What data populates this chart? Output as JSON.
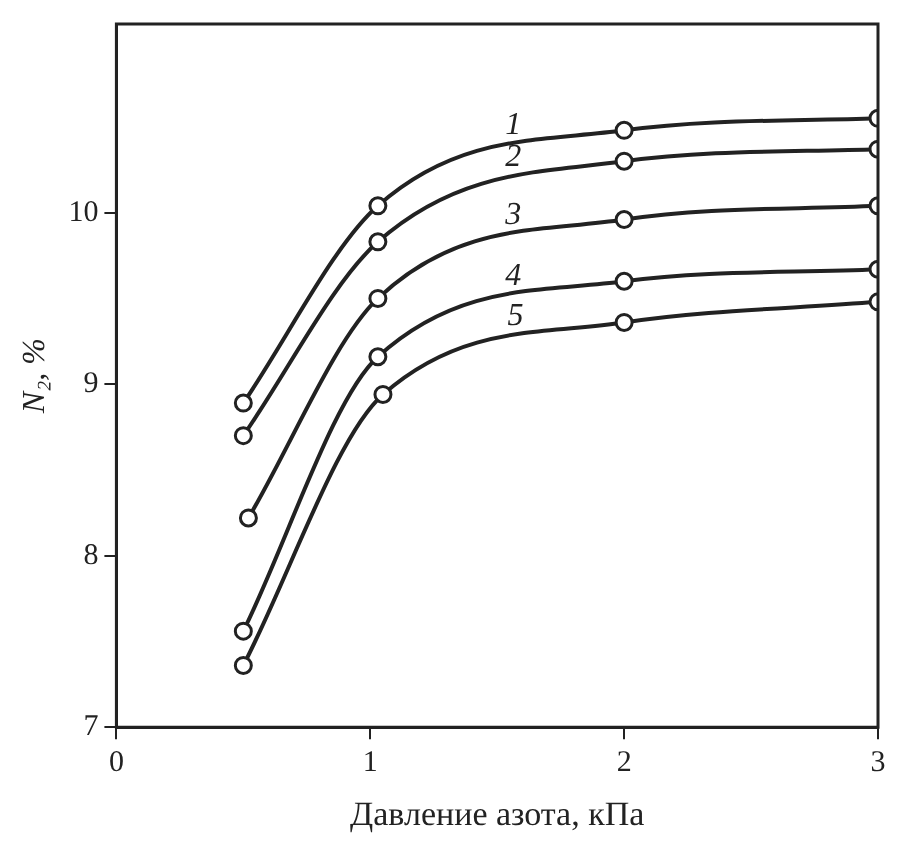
{
  "chart_data": {
    "type": "line",
    "xlabel": "Давление азота, кПа",
    "ylabel": "N₂, %",
    "xlim": [
      0,
      3
    ],
    "xticks": [
      0,
      1,
      2,
      3
    ],
    "ylim": [
      7,
      11.1
    ],
    "yticks": [
      7,
      8,
      9,
      10
    ],
    "grid": false,
    "legend": false,
    "marker": "circle",
    "line_style": "solid",
    "series": [
      {
        "name": "1",
        "color": "#222222",
        "x": [
          0.5,
          1.03,
          2,
          3
        ],
        "values": [
          8.89,
          10.04,
          10.48,
          10.55
        ]
      },
      {
        "name": "2",
        "color": "#222222",
        "x": [
          0.5,
          1.03,
          2,
          3
        ],
        "values": [
          8.7,
          9.83,
          10.3,
          10.37
        ]
      },
      {
        "name": "3",
        "color": "#222222",
        "x": [
          0.52,
          1.03,
          2,
          3
        ],
        "values": [
          8.22,
          9.5,
          9.96,
          10.04
        ]
      },
      {
        "name": "4",
        "color": "#222222",
        "x": [
          0.5,
          1.03,
          2,
          3
        ],
        "values": [
          7.56,
          9.16,
          9.6,
          9.67
        ]
      },
      {
        "name": "5",
        "color": "#222222",
        "x": [
          0.5,
          1.05,
          2,
          3
        ],
        "values": [
          7.36,
          8.94,
          9.36,
          9.48
        ]
      }
    ]
  }
}
